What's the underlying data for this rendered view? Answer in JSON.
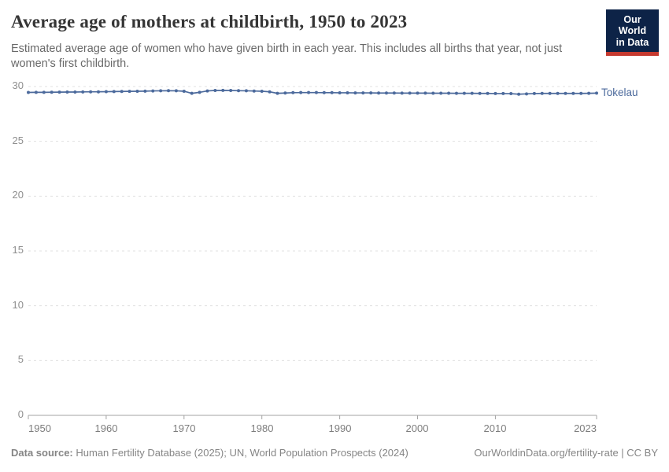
{
  "header": {
    "title": "Average age of mothers at childbirth, 1950 to 2023",
    "subtitle": "Estimated average age of women who have given birth in each year. This includes all births that year, not just women's first childbirth.",
    "logo": {
      "line1": "Our World",
      "line2": "in Data"
    }
  },
  "chart_data": {
    "type": "line",
    "title": "Average age of mothers at childbirth, 1950 to 2023",
    "xlabel": "",
    "ylabel": "",
    "x_range": [
      1950,
      2023
    ],
    "ylim": [
      0,
      30
    ],
    "grid": "horizontal-dashed",
    "legend_position": "end-of-line-label",
    "y_ticks": [
      0,
      5,
      10,
      15,
      20,
      25,
      30
    ],
    "y_tick_labels": [
      "0",
      "5",
      "10",
      "15",
      "20",
      "25",
      "30"
    ],
    "x_tick_years": [
      1950,
      1960,
      1970,
      1980,
      1990,
      2000,
      2010,
      2023
    ],
    "x_tick_labels": [
      "1950",
      "1960",
      "1970",
      "1980",
      "1990",
      "2000",
      "2010",
      "2023"
    ],
    "series": [
      {
        "name": "Tokelau",
        "color": "#4C6A9C",
        "years": [
          1950,
          1951,
          1952,
          1953,
          1954,
          1955,
          1956,
          1957,
          1958,
          1959,
          1960,
          1961,
          1962,
          1963,
          1964,
          1965,
          1966,
          1967,
          1968,
          1969,
          1970,
          1971,
          1972,
          1973,
          1974,
          1975,
          1976,
          1977,
          1978,
          1979,
          1980,
          1981,
          1982,
          1983,
          1984,
          1985,
          1986,
          1987,
          1988,
          1989,
          1990,
          1991,
          1992,
          1993,
          1994,
          1995,
          1996,
          1997,
          1998,
          1999,
          2000,
          2001,
          2002,
          2003,
          2004,
          2005,
          2006,
          2007,
          2008,
          2009,
          2010,
          2011,
          2012,
          2013,
          2014,
          2015,
          2016,
          2017,
          2018,
          2019,
          2020,
          2021,
          2022,
          2023
        ],
        "values": [
          29.46,
          29.47,
          29.47,
          29.48,
          29.49,
          29.5,
          29.5,
          29.51,
          29.52,
          29.52,
          29.53,
          29.54,
          29.55,
          29.56,
          29.57,
          29.58,
          29.6,
          29.61,
          29.62,
          29.61,
          29.57,
          29.38,
          29.47,
          29.6,
          29.64,
          29.65,
          29.64,
          29.62,
          29.61,
          29.59,
          29.57,
          29.52,
          29.38,
          29.41,
          29.44,
          29.45,
          29.45,
          29.45,
          29.44,
          29.44,
          29.43,
          29.43,
          29.42,
          29.42,
          29.42,
          29.41,
          29.41,
          29.41,
          29.4,
          29.4,
          29.4,
          29.4,
          29.39,
          29.39,
          29.39,
          29.38,
          29.38,
          29.38,
          29.37,
          29.37,
          29.36,
          29.36,
          29.35,
          29.3,
          29.33,
          29.36,
          29.37,
          29.37,
          29.37,
          29.37,
          29.37,
          29.37,
          29.38,
          29.4
        ]
      }
    ]
  },
  "entity_label": "Tokelau",
  "footer": {
    "source_label": "Data source:",
    "source_text": "Human Fertility Database (2025); UN, World Population Prospects (2024)",
    "attribution": "OurWorldinData.org/fertility-rate | CC BY"
  },
  "colors": {
    "line": "#4C6A9C",
    "gridline": "#e0e0e0",
    "axis": "#a3a3a3",
    "title": "#353535",
    "subtitle": "#696969",
    "tick_label": "#8f8f8f",
    "footer_text": "#858585",
    "logo_background": "#0d2347",
    "logo_red_bar": "#c5392f"
  }
}
